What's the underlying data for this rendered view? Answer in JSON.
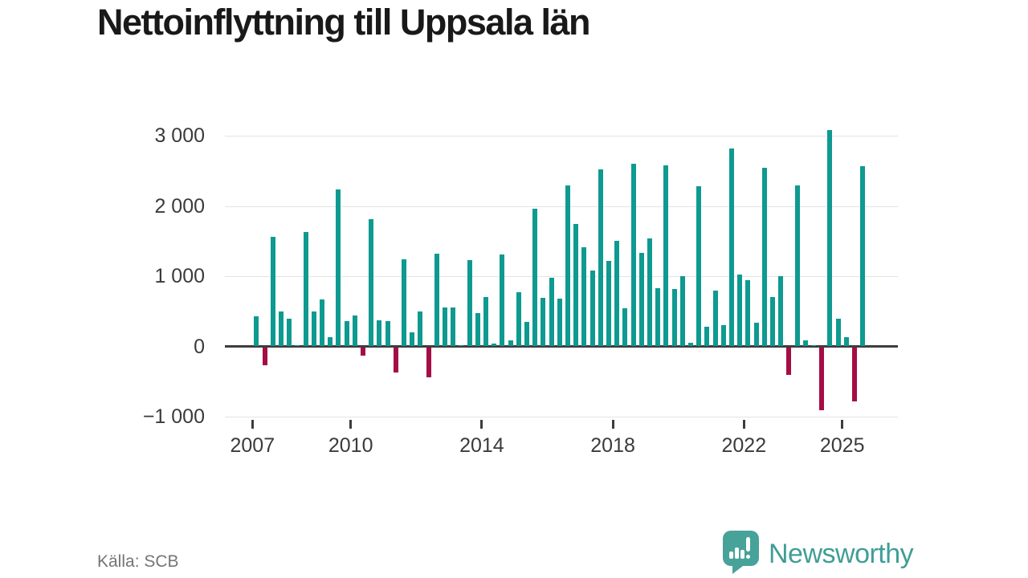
{
  "title": "Nettoinflyttning till Uppsala län",
  "source": "Källa: SCB",
  "logo": {
    "text": "Newsworthy"
  },
  "colors": {
    "positive_bar": "#0e9a90",
    "negative_bar": "#a50d45",
    "gridline": "#e3e3e3",
    "axis": "#3d3d3d",
    "tick_text": "#3b3b3b",
    "title_text": "#191919",
    "source_text": "#757575",
    "logo_teal": "#3f9e96",
    "logo_bubble": "#47a29a"
  },
  "chart_data": {
    "type": "bar",
    "title": "Nettoinflyttning till Uppsala län",
    "xlabel": "",
    "ylabel": "",
    "ylim": [
      -1000,
      3000
    ],
    "grid": "horizontal",
    "legend": "none",
    "y_ticks": [
      {
        "label": "3 000",
        "value": 3000
      },
      {
        "label": "2 000",
        "value": 2000
      },
      {
        "label": "1 000",
        "value": 1000
      },
      {
        "label": "0",
        "value": 0
      },
      {
        "label": "−1 000",
        "value": -1000
      }
    ],
    "x_ticks": [
      {
        "label": "2007",
        "year": 2007
      },
      {
        "label": "2010",
        "year": 2010
      },
      {
        "label": "2014",
        "year": 2014
      },
      {
        "label": "2018",
        "year": 2018
      },
      {
        "label": "2022",
        "year": 2022
      },
      {
        "label": "2025",
        "year": 2025
      }
    ],
    "start_quarter": "2007 Q1",
    "quarters": [
      {
        "label": "2007 Q1",
        "value": 420
      },
      {
        "label": "2007 Q2",
        "value": -250
      },
      {
        "label": "2007 Q3",
        "value": 1560
      },
      {
        "label": "2007 Q4",
        "value": 490
      },
      {
        "label": "2008 Q1",
        "value": 390
      },
      {
        "label": "2008 Q2",
        "value": 10
      },
      {
        "label": "2008 Q3",
        "value": 1620
      },
      {
        "label": "2008 Q4",
        "value": 490
      },
      {
        "label": "2009 Q1",
        "value": 660
      },
      {
        "label": "2009 Q2",
        "value": 130
      },
      {
        "label": "2009 Q3",
        "value": 2230
      },
      {
        "label": "2009 Q4",
        "value": 360
      },
      {
        "label": "2010 Q1",
        "value": 440
      },
      {
        "label": "2010 Q2",
        "value": -110
      },
      {
        "label": "2010 Q3",
        "value": 1810
      },
      {
        "label": "2010 Q4",
        "value": 370
      },
      {
        "label": "2011 Q1",
        "value": 350
      },
      {
        "label": "2011 Q2",
        "value": -350
      },
      {
        "label": "2011 Q3",
        "value": 1230
      },
      {
        "label": "2011 Q4",
        "value": 190
      },
      {
        "label": "2012 Q1",
        "value": 490
      },
      {
        "label": "2012 Q2",
        "value": -420
      },
      {
        "label": "2012 Q3",
        "value": 1310
      },
      {
        "label": "2012 Q4",
        "value": 550
      },
      {
        "label": "2013 Q1",
        "value": 550
      },
      {
        "label": "2013 Q2",
        "value": 10
      },
      {
        "label": "2013 Q3",
        "value": 1220
      },
      {
        "label": "2013 Q4",
        "value": 470
      },
      {
        "label": "2014 Q1",
        "value": 700
      },
      {
        "label": "2014 Q2",
        "value": 40
      },
      {
        "label": "2014 Q3",
        "value": 1300
      },
      {
        "label": "2014 Q4",
        "value": 80
      },
      {
        "label": "2015 Q1",
        "value": 770
      },
      {
        "label": "2015 Q2",
        "value": 340
      },
      {
        "label": "2015 Q3",
        "value": 1960
      },
      {
        "label": "2015 Q4",
        "value": 690
      },
      {
        "label": "2016 Q1",
        "value": 970
      },
      {
        "label": "2016 Q2",
        "value": 670
      },
      {
        "label": "2016 Q3",
        "value": 2290
      },
      {
        "label": "2016 Q4",
        "value": 1740
      },
      {
        "label": "2017 Q1",
        "value": 1410
      },
      {
        "label": "2017 Q2",
        "value": 1080
      },
      {
        "label": "2017 Q3",
        "value": 2520
      },
      {
        "label": "2017 Q4",
        "value": 1210
      },
      {
        "label": "2018 Q1",
        "value": 1500
      },
      {
        "label": "2018 Q2",
        "value": 540
      },
      {
        "label": "2018 Q3",
        "value": 2600
      },
      {
        "label": "2018 Q4",
        "value": 1330
      },
      {
        "label": "2019 Q1",
        "value": 1530
      },
      {
        "label": "2019 Q2",
        "value": 820
      },
      {
        "label": "2019 Q3",
        "value": 2570
      },
      {
        "label": "2019 Q4",
        "value": 810
      },
      {
        "label": "2020 Q1",
        "value": 990
      },
      {
        "label": "2020 Q2",
        "value": 50
      },
      {
        "label": "2020 Q3",
        "value": 2280
      },
      {
        "label": "2020 Q4",
        "value": 270
      },
      {
        "label": "2021 Q1",
        "value": 790
      },
      {
        "label": "2021 Q2",
        "value": 300
      },
      {
        "label": "2021 Q3",
        "value": 2810
      },
      {
        "label": "2021 Q4",
        "value": 1020
      },
      {
        "label": "2022 Q1",
        "value": 940
      },
      {
        "label": "2022 Q2",
        "value": 330
      },
      {
        "label": "2022 Q3",
        "value": 2540
      },
      {
        "label": "2022 Q4",
        "value": 700
      },
      {
        "label": "2023 Q1",
        "value": 1000
      },
      {
        "label": "2023 Q2",
        "value": -390
      },
      {
        "label": "2023 Q3",
        "value": 2290
      },
      {
        "label": "2023 Q4",
        "value": 80
      },
      {
        "label": "2024 Q1",
        "value": 10
      },
      {
        "label": "2024 Q2",
        "value": -890
      },
      {
        "label": "2024 Q3",
        "value": 3070
      },
      {
        "label": "2024 Q4",
        "value": 390
      },
      {
        "label": "2025 Q1",
        "value": 130
      },
      {
        "label": "2025 Q2",
        "value": -770
      },
      {
        "label": "2025 Q3",
        "value": 2560
      }
    ]
  }
}
